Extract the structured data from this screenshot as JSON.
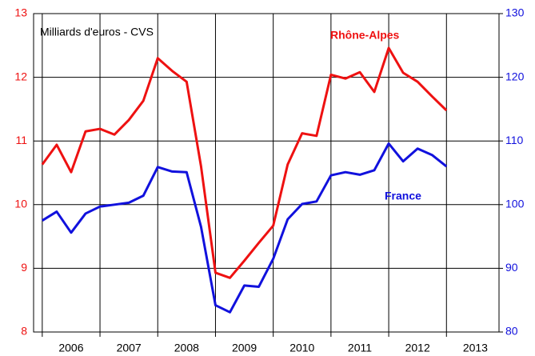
{
  "chart_data": {
    "type": "line",
    "annotations": [
      "Milliards d'euros - CVS"
    ],
    "x": [
      2006,
      2006.25,
      2006.5,
      2006.75,
      2007,
      2007.25,
      2007.5,
      2007.75,
      2008,
      2008.25,
      2008.5,
      2008.75,
      2009,
      2009.25,
      2009.5,
      2009.75,
      2010,
      2010.25,
      2010.5,
      2010.75,
      2011,
      2011.25,
      2011.5,
      2011.75,
      2012,
      2012.25,
      2012.5,
      2012.75,
      2013
    ],
    "series": [
      {
        "name": "Rhône-Alpes",
        "color": "#ee1111",
        "axis": "y",
        "values": [
          10.63,
          10.94,
          10.51,
          11.15,
          11.19,
          11.1,
          11.33,
          11.63,
          12.3,
          12.1,
          11.93,
          10.6,
          8.93,
          8.85,
          9.12,
          9.4,
          9.67,
          10.63,
          11.12,
          11.08,
          12.04,
          11.98,
          12.08,
          11.77,
          12.46,
          12.07,
          11.93,
          11.7,
          11.48
        ]
      },
      {
        "name": "France",
        "color": "#1111dd",
        "axis": "y2",
        "values": [
          97.5,
          98.9,
          95.6,
          98.6,
          99.7,
          100.0,
          100.3,
          101.4,
          105.9,
          105.2,
          105.1,
          96.5,
          84.2,
          83.1,
          87.3,
          87.1,
          91.5,
          97.7,
          100.1,
          100.5,
          104.6,
          105.1,
          104.7,
          105.4,
          109.6,
          106.8,
          108.8,
          107.8,
          106.0
        ]
      }
    ],
    "xlim": [
      2005.85,
      2013.91
    ],
    "xticks": [
      2006,
      2007,
      2008,
      2009,
      2010,
      2011,
      2012,
      2013
    ],
    "ylim": [
      8,
      13
    ],
    "yticks": [
      8,
      9,
      10,
      11,
      12,
      13
    ],
    "y2lim": [
      80,
      130
    ],
    "y2ticks": [
      80,
      90,
      100,
      110,
      120,
      130
    ],
    "grid": true
  }
}
